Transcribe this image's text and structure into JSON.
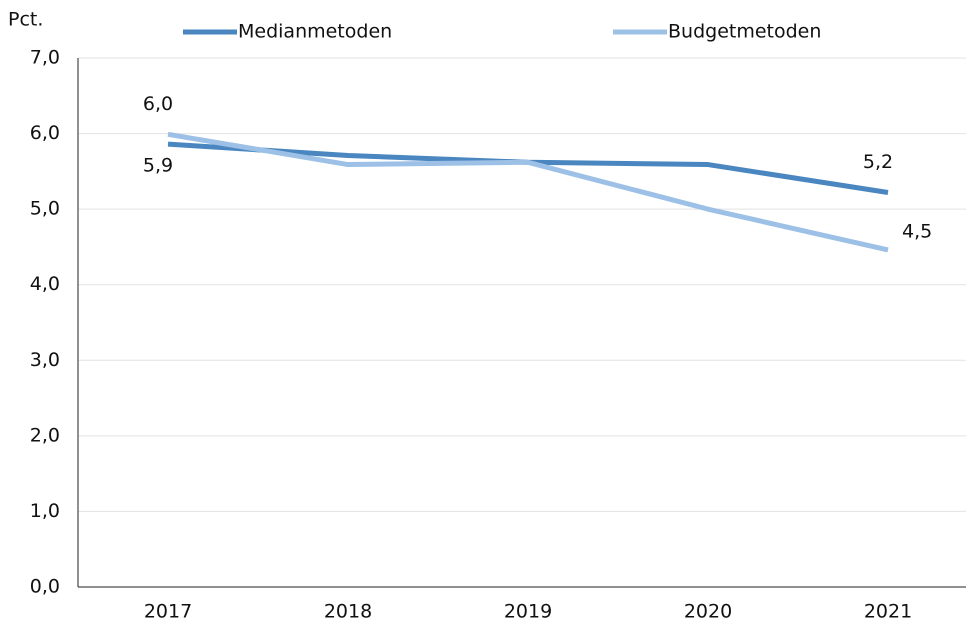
{
  "chart_data": {
    "type": "line",
    "y_label": "Pct.",
    "categories": [
      "2017",
      "2018",
      "2019",
      "2020",
      "2021"
    ],
    "series": [
      {
        "name": "Medianmetoden",
        "color": "#4a86bf",
        "values": [
          5.86,
          5.71,
          5.62,
          5.59,
          5.22
        ],
        "value_labels": [
          "5,9",
          null,
          null,
          null,
          "5,2"
        ]
      },
      {
        "name": "Budgetmetoden",
        "color": "#9dc0e6",
        "values": [
          5.99,
          5.59,
          5.62,
          5.0,
          4.46
        ],
        "value_labels": [
          "6,0",
          null,
          null,
          null,
          "4,5"
        ]
      }
    ],
    "ylim": [
      0,
      7
    ],
    "yticks": [
      {
        "value": 0,
        "label": "0,0"
      },
      {
        "value": 1,
        "label": "1,0"
      },
      {
        "value": 2,
        "label": "2,0"
      },
      {
        "value": 3,
        "label": "3,0"
      },
      {
        "value": 4,
        "label": "4,0"
      },
      {
        "value": 5,
        "label": "5,0"
      },
      {
        "value": 6,
        "label": "6,0"
      },
      {
        "value": 7,
        "label": "7,0"
      }
    ],
    "grid": true,
    "legend": "top"
  }
}
